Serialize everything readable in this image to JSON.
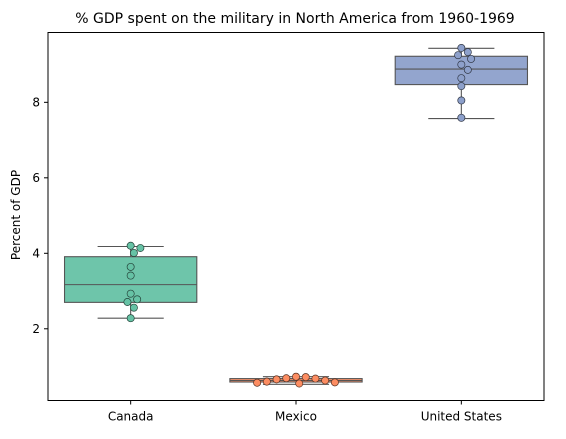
{
  "chart_data": {
    "type": "box",
    "title": "% GDP spent on the military in North America from 1960-1969",
    "xlabel": "",
    "ylabel": "Percent of GDP",
    "ylim": [
      0.1,
      9.85
    ],
    "yticks": [
      2,
      4,
      6,
      8
    ],
    "grid": false,
    "legend": "none",
    "categories": [
      "Canada",
      "Mexico",
      "United States"
    ],
    "colors": [
      "#66c2a5",
      "#fc8d62",
      "#8da0cb"
    ],
    "boxes": [
      {
        "q1": 2.7,
        "median": 3.17,
        "q3": 3.91,
        "whisker_low": 2.28,
        "whisker_high": 4.18
      },
      {
        "q1": 0.59,
        "median": 0.63,
        "q3": 0.68,
        "whisker_low": 0.53,
        "whisker_high": 0.73
      },
      {
        "q1": 8.47,
        "median": 8.88,
        "q3": 9.22,
        "whisker_low": 7.57,
        "whisker_high": 9.43
      }
    ],
    "points": [
      [
        4.2,
        4.14,
        4.01,
        3.64,
        3.41,
        2.93,
        2.78,
        2.71,
        2.56,
        2.28
      ],
      [
        0.72,
        0.68,
        0.63,
        0.58,
        0.55,
        0.57,
        0.6,
        0.66,
        0.69,
        0.73
      ],
      [
        9.44,
        9.33,
        9.25,
        9.15,
        9.0,
        8.86,
        8.64,
        8.43,
        8.05,
        7.59
      ]
    ]
  }
}
